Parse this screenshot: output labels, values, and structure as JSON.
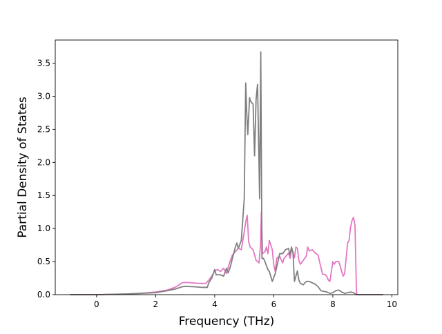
{
  "chart_data": {
    "type": "line",
    "title": "",
    "xlabel": "Frequency (THz)",
    "ylabel": "Partial Density of States",
    "xlim": [
      -1.4,
      10.2
    ],
    "ylim": [
      0.0,
      3.85
    ],
    "xticks": [
      0,
      2,
      4,
      6,
      8,
      10
    ],
    "yticks": [
      0.0,
      0.5,
      1.0,
      1.5,
      2.0,
      2.5,
      3.0,
      3.5
    ],
    "xtick_labels": [
      "0",
      "2",
      "4",
      "6",
      "8",
      "10"
    ],
    "ytick_labels": [
      "0.0",
      "0.5",
      "1.0",
      "1.5",
      "2.0",
      "2.5",
      "3.0",
      "3.5"
    ],
    "grid": false,
    "legend": "none",
    "series": [
      {
        "color": "#e377c2",
        "points": [
          [
            -0.9,
            0.0
          ],
          [
            0.0,
            0.0
          ],
          [
            0.5,
            0.005
          ],
          [
            1.0,
            0.01
          ],
          [
            1.5,
            0.02
          ],
          [
            2.0,
            0.04
          ],
          [
            2.4,
            0.07
          ],
          [
            2.7,
            0.12
          ],
          [
            2.9,
            0.18
          ],
          [
            3.0,
            0.185
          ],
          [
            3.2,
            0.18
          ],
          [
            3.5,
            0.17
          ],
          [
            3.7,
            0.17
          ],
          [
            3.8,
            0.22
          ],
          [
            3.9,
            0.28
          ],
          [
            4.0,
            0.36
          ],
          [
            4.1,
            0.38
          ],
          [
            4.2,
            0.35
          ],
          [
            4.3,
            0.4
          ],
          [
            4.4,
            0.32
          ],
          [
            4.5,
            0.48
          ],
          [
            4.6,
            0.6
          ],
          [
            4.7,
            0.65
          ],
          [
            4.8,
            0.7
          ],
          [
            4.9,
            0.68
          ],
          [
            5.0,
            0.95
          ],
          [
            5.05,
            1.1
          ],
          [
            5.1,
            1.2
          ],
          [
            5.15,
            0.8
          ],
          [
            5.2,
            0.72
          ],
          [
            5.3,
            0.68
          ],
          [
            5.4,
            0.52
          ],
          [
            5.5,
            0.48
          ],
          [
            5.55,
            0.75
          ],
          [
            5.58,
            1.25
          ],
          [
            5.62,
            0.62
          ],
          [
            5.7,
            0.65
          ],
          [
            5.75,
            0.72
          ],
          [
            5.8,
            0.62
          ],
          [
            5.85,
            0.82
          ],
          [
            5.9,
            0.75
          ],
          [
            5.95,
            0.68
          ],
          [
            6.0,
            0.45
          ],
          [
            6.05,
            0.35
          ],
          [
            6.1,
            0.55
          ],
          [
            6.2,
            0.58
          ],
          [
            6.3,
            0.48
          ],
          [
            6.35,
            0.55
          ],
          [
            6.45,
            0.6
          ],
          [
            6.5,
            0.63
          ],
          [
            6.55,
            0.55
          ],
          [
            6.6,
            0.68
          ],
          [
            6.65,
            0.64
          ],
          [
            6.7,
            0.56
          ],
          [
            6.75,
            0.72
          ],
          [
            6.8,
            0.7
          ],
          [
            6.85,
            0.52
          ],
          [
            6.9,
            0.46
          ],
          [
            7.0,
            0.52
          ],
          [
            7.05,
            0.55
          ],
          [
            7.1,
            0.58
          ],
          [
            7.15,
            0.72
          ],
          [
            7.2,
            0.66
          ],
          [
            7.3,
            0.68
          ],
          [
            7.4,
            0.63
          ],
          [
            7.5,
            0.6
          ],
          [
            7.55,
            0.5
          ],
          [
            7.65,
            0.31
          ],
          [
            7.75,
            0.3
          ],
          [
            7.8,
            0.27
          ],
          [
            7.85,
            0.22
          ],
          [
            7.9,
            0.2
          ],
          [
            8.0,
            0.5
          ],
          [
            8.05,
            0.46
          ],
          [
            8.1,
            0.5
          ],
          [
            8.2,
            0.5
          ],
          [
            8.25,
            0.43
          ],
          [
            8.3,
            0.35
          ],
          [
            8.35,
            0.28
          ],
          [
            8.4,
            0.32
          ],
          [
            8.45,
            0.55
          ],
          [
            8.5,
            0.78
          ],
          [
            8.55,
            0.82
          ],
          [
            8.6,
            1.02
          ],
          [
            8.65,
            1.12
          ],
          [
            8.7,
            1.17
          ],
          [
            8.75,
            1.05
          ],
          [
            8.8,
            0.05
          ],
          [
            8.82,
            0.0
          ],
          [
            9.7,
            0.0
          ]
        ]
      },
      {
        "color": "#7f7f7f",
        "points": [
          [
            -0.9,
            0.0
          ],
          [
            0.0,
            0.0
          ],
          [
            0.5,
            0.005
          ],
          [
            1.0,
            0.01
          ],
          [
            1.5,
            0.02
          ],
          [
            2.0,
            0.03
          ],
          [
            2.4,
            0.06
          ],
          [
            2.7,
            0.09
          ],
          [
            2.9,
            0.12
          ],
          [
            3.0,
            0.125
          ],
          [
            3.3,
            0.12
          ],
          [
            3.6,
            0.11
          ],
          [
            3.75,
            0.11
          ],
          [
            3.8,
            0.18
          ],
          [
            3.9,
            0.25
          ],
          [
            4.0,
            0.38
          ],
          [
            4.05,
            0.3
          ],
          [
            4.2,
            0.3
          ],
          [
            4.3,
            0.28
          ],
          [
            4.4,
            0.4
          ],
          [
            4.45,
            0.33
          ],
          [
            4.5,
            0.38
          ],
          [
            4.55,
            0.46
          ],
          [
            4.6,
            0.55
          ],
          [
            4.7,
            0.72
          ],
          [
            4.75,
            0.78
          ],
          [
            4.8,
            0.7
          ],
          [
            4.9,
            0.82
          ],
          [
            5.0,
            1.45
          ],
          [
            5.05,
            3.2
          ],
          [
            5.08,
            2.8
          ],
          [
            5.12,
            2.42
          ],
          [
            5.15,
            2.7
          ],
          [
            5.18,
            2.98
          ],
          [
            5.22,
            2.92
          ],
          [
            5.3,
            2.88
          ],
          [
            5.35,
            2.1
          ],
          [
            5.4,
            2.95
          ],
          [
            5.45,
            3.18
          ],
          [
            5.5,
            2.0
          ],
          [
            5.52,
            1.45
          ],
          [
            5.56,
            3.67
          ],
          [
            5.6,
            0.55
          ],
          [
            5.65,
            0.55
          ],
          [
            5.7,
            0.5
          ],
          [
            5.8,
            0.38
          ],
          [
            5.85,
            0.35
          ],
          [
            5.95,
            0.2
          ],
          [
            6.05,
            0.32
          ],
          [
            6.1,
            0.42
          ],
          [
            6.2,
            0.62
          ],
          [
            6.3,
            0.62
          ],
          [
            6.4,
            0.68
          ],
          [
            6.5,
            0.7
          ],
          [
            6.55,
            0.6
          ],
          [
            6.6,
            0.72
          ],
          [
            6.65,
            0.64
          ],
          [
            6.7,
            0.2
          ],
          [
            6.8,
            0.36
          ],
          [
            6.85,
            0.22
          ],
          [
            6.9,
            0.17
          ],
          [
            7.0,
            0.15
          ],
          [
            7.1,
            0.2
          ],
          [
            7.2,
            0.2
          ],
          [
            7.3,
            0.18
          ],
          [
            7.4,
            0.16
          ],
          [
            7.5,
            0.12
          ],
          [
            7.6,
            0.06
          ],
          [
            7.7,
            0.05
          ],
          [
            7.8,
            0.04
          ],
          [
            7.9,
            0.02
          ],
          [
            8.0,
            0.03
          ],
          [
            8.1,
            0.06
          ],
          [
            8.2,
            0.07
          ],
          [
            8.3,
            0.04
          ],
          [
            8.4,
            0.02
          ],
          [
            8.5,
            0.03
          ],
          [
            8.6,
            0.04
          ],
          [
            8.7,
            0.03
          ],
          [
            8.8,
            0.0
          ],
          [
            9.7,
            0.0
          ]
        ]
      }
    ]
  }
}
